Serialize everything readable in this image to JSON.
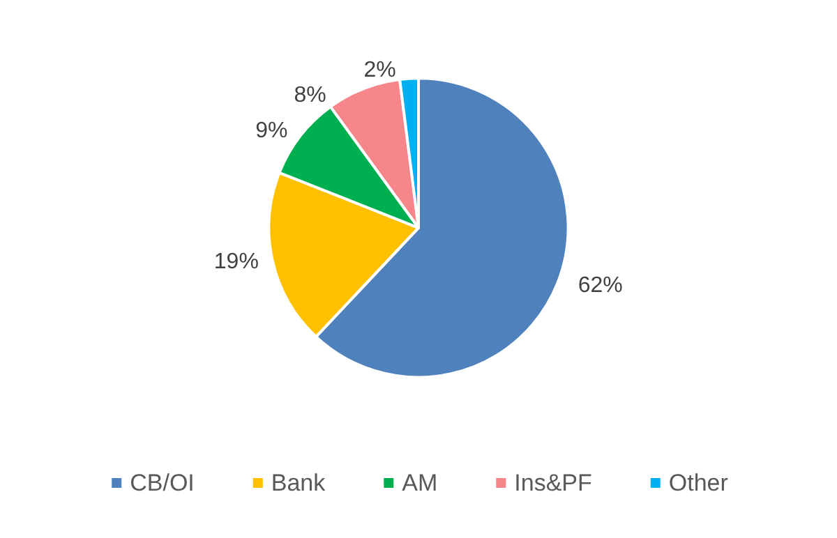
{
  "chart_data": {
    "type": "pie",
    "categories": [
      "CB/OI",
      "Bank",
      "AM",
      "Ins&PF",
      "Other"
    ],
    "values": [
      62,
      19,
      9,
      8,
      2
    ],
    "colors": [
      "#4f81bd",
      "#ffc000",
      "#00b050",
      "#f7868a",
      "#00b0f0"
    ],
    "value_labels": [
      "62%",
      "19%",
      "9%",
      "8%",
      "2%"
    ],
    "legend": "bottom"
  }
}
